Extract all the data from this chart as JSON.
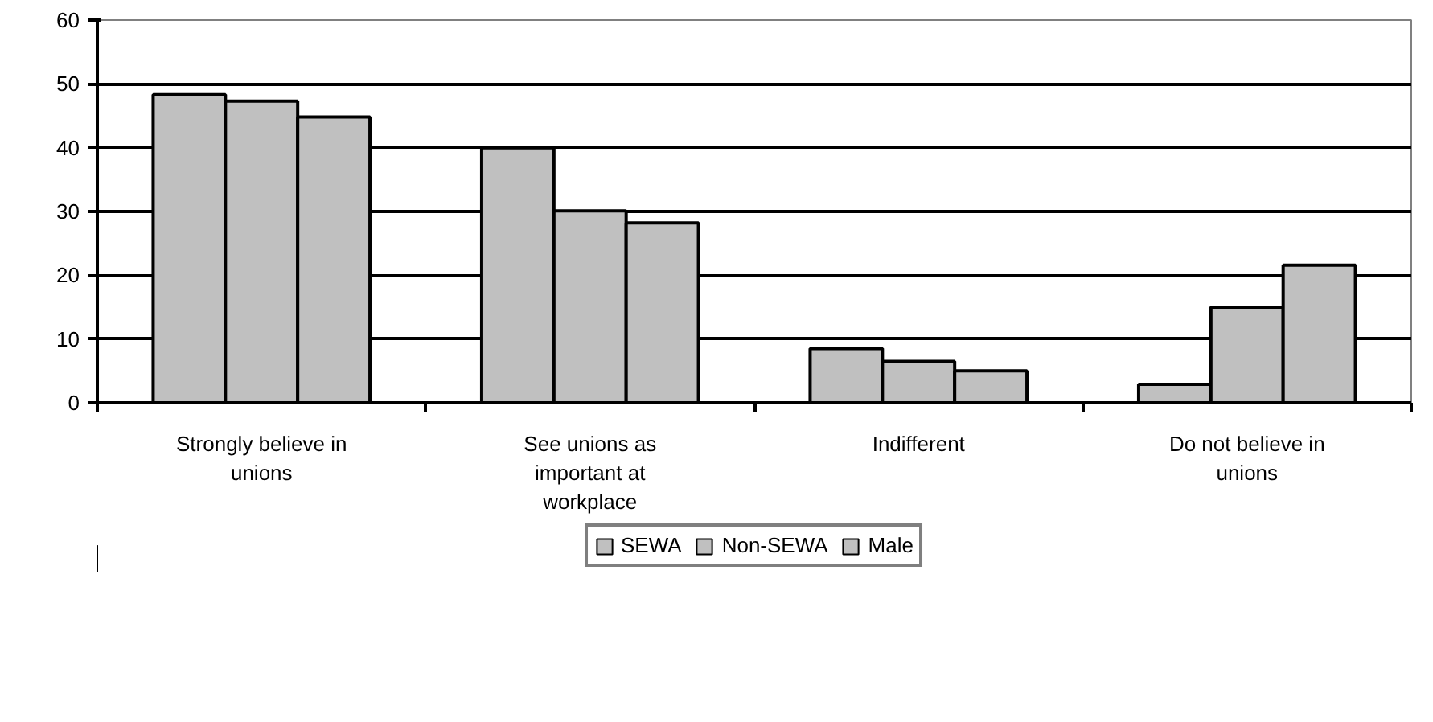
{
  "chart_data": {
    "type": "bar",
    "categories": [
      "Strongly believe in unions",
      "See unions as important at workplace",
      "Indifferent",
      "Do not believe in unions"
    ],
    "series": [
      {
        "name": "SEWA",
        "color": "#c0c0c0",
        "values": [
          48.3,
          40,
          8.5,
          2.9
        ]
      },
      {
        "name": "Non-SEWA",
        "color": "#c0c0c0",
        "values": [
          47.3,
          30.1,
          6.5,
          15
        ]
      },
      {
        "name": "Male",
        "color": "#c0c0c0",
        "values": [
          44.8,
          28.2,
          5,
          21.6
        ]
      }
    ],
    "ylim": [
      0,
      60
    ],
    "yticks": [
      0,
      10,
      20,
      30,
      40,
      50,
      60
    ],
    "grid": "y",
    "legend": "bottom"
  }
}
